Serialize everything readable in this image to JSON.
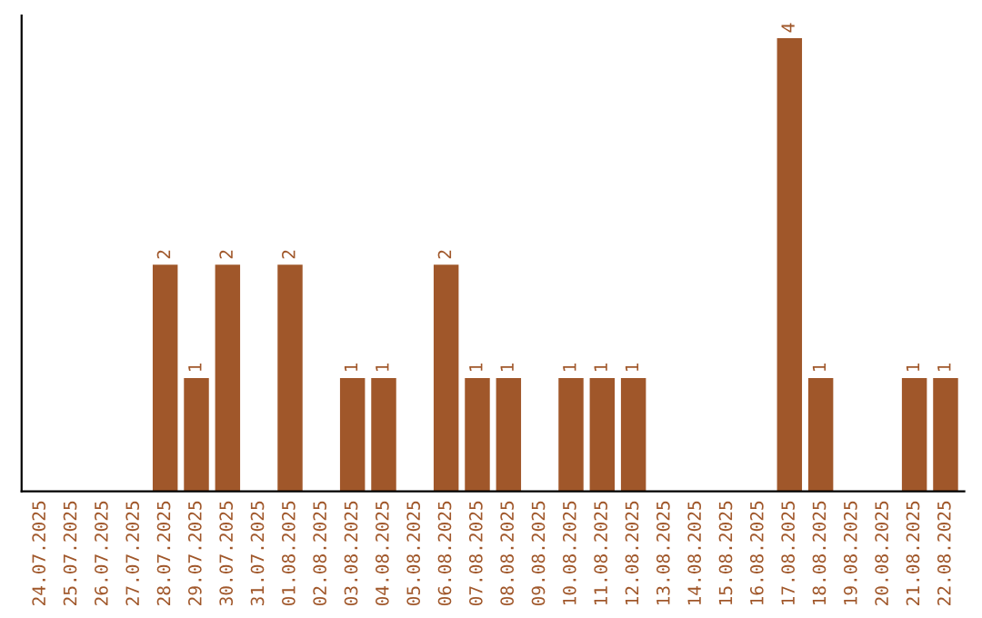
{
  "chart_data": {
    "type": "bar",
    "categories": [
      "24.07.2025",
      "25.07.2025",
      "26.07.2025",
      "27.07.2025",
      "28.07.2025",
      "29.07.2025",
      "30.07.2025",
      "31.07.2025",
      "01.08.2025",
      "02.08.2025",
      "03.08.2025",
      "04.08.2025",
      "05.08.2025",
      "06.08.2025",
      "07.08.2025",
      "08.08.2025",
      "09.08.2025",
      "10.08.2025",
      "11.08.2025",
      "12.08.2025",
      "13.08.2025",
      "14.08.2025",
      "15.08.2025",
      "16.08.2025",
      "17.08.2025",
      "18.08.2025",
      "19.08.2025",
      "20.08.2025",
      "21.08.2025",
      "22.08.2025"
    ],
    "values": [
      0,
      0,
      0,
      0,
      2,
      1,
      2,
      0,
      2,
      0,
      1,
      1,
      0,
      2,
      1,
      1,
      0,
      1,
      1,
      1,
      0,
      0,
      0,
      0,
      4,
      1,
      0,
      0,
      1,
      1
    ],
    "value_labels": [
      null,
      null,
      null,
      null,
      "2",
      "1",
      "2",
      null,
      "2",
      null,
      "1",
      "1",
      null,
      "2",
      "1",
      "1",
      null,
      "1",
      "1",
      "1",
      null,
      null,
      null,
      null,
      "4",
      "1",
      null,
      null,
      "1",
      "1"
    ],
    "color": "#a0572a",
    "tick_labels": "x",
    "grid": false,
    "legend": false
  }
}
